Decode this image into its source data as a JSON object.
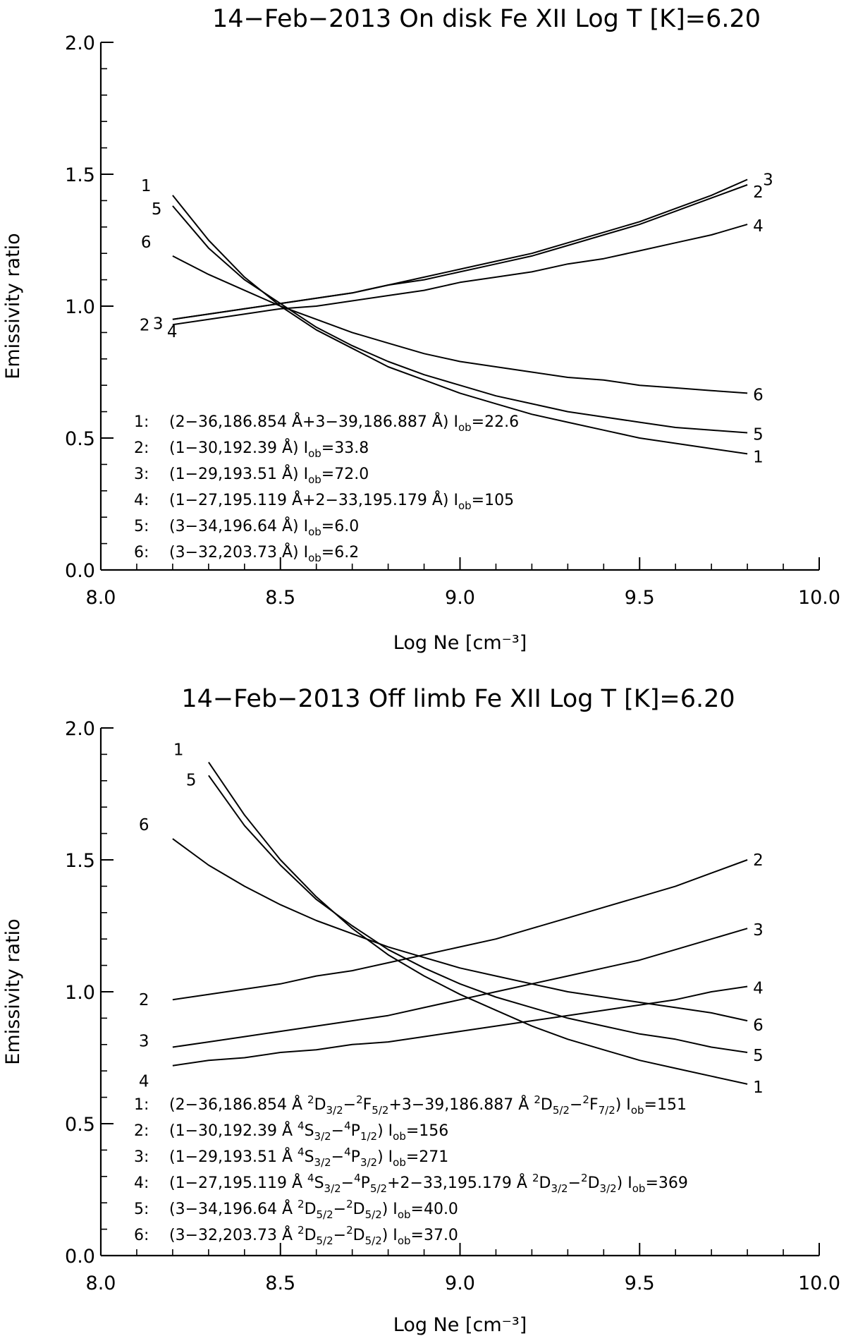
{
  "chart_data": [
    {
      "type": "line",
      "title": "14−Feb−2013 On disk Fe XII  Log T [K]=6.20",
      "xlabel": "Log Ne [cm⁻³]",
      "ylabel": "Emissivity ratio",
      "xlim": [
        8.0,
        10.0
      ],
      "ylim": [
        0.0,
        2.0
      ],
      "x_ticks": [
        "8.0",
        "8.5",
        "9.0",
        "9.5",
        "10.0"
      ],
      "y_ticks": [
        "0.0",
        "0.5",
        "1.0",
        "1.5",
        "2.0"
      ],
      "x": [
        8.2,
        8.3,
        8.4,
        8.5,
        8.6,
        8.7,
        8.8,
        8.9,
        9.0,
        9.1,
        9.2,
        9.3,
        9.4,
        9.5,
        9.6,
        9.7,
        9.8
      ],
      "series": [
        {
          "name": "1",
          "values": [
            1.42,
            1.25,
            1.11,
            1.0,
            0.91,
            0.84,
            0.77,
            0.72,
            0.67,
            0.63,
            0.59,
            0.56,
            0.53,
            0.5,
            0.48,
            0.46,
            0.44
          ]
        },
        {
          "name": "2",
          "values": [
            0.95,
            0.97,
            0.99,
            1.01,
            1.03,
            1.05,
            1.08,
            1.1,
            1.13,
            1.16,
            1.19,
            1.23,
            1.27,
            1.31,
            1.36,
            1.41,
            1.46
          ]
        },
        {
          "name": "3",
          "values": [
            0.95,
            0.97,
            0.99,
            1.01,
            1.03,
            1.05,
            1.08,
            1.11,
            1.14,
            1.17,
            1.2,
            1.24,
            1.28,
            1.32,
            1.37,
            1.42,
            1.48
          ]
        },
        {
          "name": "4",
          "values": [
            0.93,
            0.95,
            0.97,
            0.99,
            1.0,
            1.02,
            1.04,
            1.06,
            1.09,
            1.11,
            1.13,
            1.16,
            1.18,
            1.21,
            1.24,
            1.27,
            1.31
          ]
        },
        {
          "name": "5",
          "values": [
            1.38,
            1.22,
            1.1,
            1.01,
            0.92,
            0.85,
            0.79,
            0.74,
            0.7,
            0.66,
            0.63,
            0.6,
            0.58,
            0.56,
            0.54,
            0.53,
            0.52
          ]
        },
        {
          "name": "6",
          "values": [
            1.19,
            1.12,
            1.06,
            1.0,
            0.95,
            0.9,
            0.86,
            0.82,
            0.79,
            0.77,
            0.75,
            0.73,
            0.72,
            0.7,
            0.69,
            0.68,
            0.67
          ]
        }
      ],
      "curve_labels": {
        "left": [
          {
            "series": "1",
            "text": "1"
          },
          {
            "series": "5",
            "text": "5"
          },
          {
            "series": "6",
            "text": "6"
          },
          {
            "series": "2",
            "text": "2"
          },
          {
            "series": "3",
            "text": "3"
          },
          {
            "series": "4",
            "text": "4"
          }
        ],
        "right": [
          {
            "series": "2",
            "text": "2"
          },
          {
            "series": "3",
            "text": "3"
          },
          {
            "series": "4",
            "text": "4"
          },
          {
            "series": "6",
            "text": "6"
          },
          {
            "series": "5",
            "text": "5"
          },
          {
            "series": "1",
            "text": "1"
          }
        ]
      },
      "legend": [
        {
          "num": "1:",
          "parts": [
            [
              "t",
              "(2−36,186.854 Å+3−39,186.887 Å) I"
            ],
            [
              "sub",
              "ob"
            ],
            [
              "t",
              "=22.6"
            ]
          ]
        },
        {
          "num": "2:",
          "parts": [
            [
              "t",
              "(1−30,192.39 Å) I"
            ],
            [
              "sub",
              "ob"
            ],
            [
              "t",
              "=33.8"
            ]
          ]
        },
        {
          "num": "3:",
          "parts": [
            [
              "t",
              "(1−29,193.51 Å) I"
            ],
            [
              "sub",
              "ob"
            ],
            [
              "t",
              "=72.0"
            ]
          ]
        },
        {
          "num": "4:",
          "parts": [
            [
              "t",
              "(1−27,195.119 Å+2−33,195.179 Å) I"
            ],
            [
              "sub",
              "ob"
            ],
            [
              "t",
              "=105"
            ]
          ]
        },
        {
          "num": "5:",
          "parts": [
            [
              "t",
              "(3−34,196.64 Å) I"
            ],
            [
              "sub",
              "ob"
            ],
            [
              "t",
              "=6.0"
            ]
          ]
        },
        {
          "num": "6:",
          "parts": [
            [
              "t",
              "(3−32,203.73 Å) I"
            ],
            [
              "sub",
              "ob"
            ],
            [
              "t",
              "=6.2"
            ]
          ]
        }
      ]
    },
    {
      "type": "line",
      "title": "14−Feb−2013 Off limb  Fe XII  Log T [K]=6.20",
      "xlabel": "Log Ne [cm⁻³]",
      "ylabel": "Emissivity ratio",
      "xlim": [
        8.0,
        10.0
      ],
      "ylim": [
        0.0,
        2.0
      ],
      "x_ticks": [
        "8.0",
        "8.5",
        "9.0",
        "9.5",
        "10.0"
      ],
      "y_ticks": [
        "0.0",
        "0.5",
        "1.0",
        "1.5",
        "2.0"
      ],
      "x": [
        8.2,
        8.3,
        8.4,
        8.5,
        8.6,
        8.7,
        8.8,
        8.9,
        9.0,
        9.1,
        9.2,
        9.3,
        9.4,
        9.5,
        9.6,
        9.7,
        9.8
      ],
      "series": [
        {
          "name": "1",
          "x": [
            8.3,
            8.4,
            8.5,
            8.6,
            8.7,
            8.8,
            8.9,
            9.0,
            9.1,
            9.2,
            9.3,
            9.4,
            9.5,
            9.6,
            9.7,
            9.8
          ],
          "values": [
            1.87,
            1.67,
            1.5,
            1.36,
            1.24,
            1.14,
            1.06,
            0.99,
            0.93,
            0.87,
            0.82,
            0.78,
            0.74,
            0.71,
            0.68,
            0.65
          ]
        },
        {
          "name": "2",
          "values": [
            0.97,
            0.99,
            1.01,
            1.03,
            1.06,
            1.08,
            1.11,
            1.14,
            1.17,
            1.2,
            1.24,
            1.28,
            1.32,
            1.36,
            1.4,
            1.45,
            1.5
          ]
        },
        {
          "name": "3",
          "values": [
            0.79,
            0.81,
            0.83,
            0.85,
            0.87,
            0.89,
            0.91,
            0.94,
            0.97,
            1.0,
            1.03,
            1.06,
            1.09,
            1.12,
            1.16,
            1.2,
            1.24
          ]
        },
        {
          "name": "4",
          "values": [
            0.72,
            0.74,
            0.75,
            0.77,
            0.78,
            0.8,
            0.81,
            0.83,
            0.85,
            0.87,
            0.89,
            0.91,
            0.93,
            0.95,
            0.97,
            1.0,
            1.02
          ]
        },
        {
          "name": "5",
          "x": [
            8.3,
            8.4,
            8.5,
            8.6,
            8.7,
            8.8,
            8.9,
            9.0,
            9.1,
            9.2,
            9.3,
            9.4,
            9.5,
            9.6,
            9.7,
            9.8
          ],
          "values": [
            1.82,
            1.63,
            1.48,
            1.35,
            1.25,
            1.16,
            1.09,
            1.03,
            0.98,
            0.94,
            0.9,
            0.87,
            0.84,
            0.82,
            0.79,
            0.77
          ]
        },
        {
          "name": "6",
          "values": [
            1.58,
            1.48,
            1.4,
            1.33,
            1.27,
            1.22,
            1.17,
            1.13,
            1.09,
            1.06,
            1.03,
            1.0,
            0.98,
            0.96,
            0.94,
            0.92,
            0.89
          ]
        }
      ],
      "curve_labels": {
        "left": [
          {
            "series": "1",
            "text": "1"
          },
          {
            "series": "5",
            "text": "5"
          },
          {
            "series": "6",
            "text": "6"
          },
          {
            "series": "2",
            "text": "2"
          },
          {
            "series": "3",
            "text": "3"
          },
          {
            "series": "4",
            "text": "4"
          }
        ],
        "right": [
          {
            "series": "2",
            "text": "2"
          },
          {
            "series": "3",
            "text": "3"
          },
          {
            "series": "4",
            "text": "4"
          },
          {
            "series": "6",
            "text": "6"
          },
          {
            "series": "5",
            "text": "5"
          },
          {
            "series": "1",
            "text": "1"
          }
        ]
      },
      "legend": [
        {
          "num": "1:",
          "parts": [
            [
              "t",
              "(2−36,186.854 Å "
            ],
            [
              "sup",
              "2"
            ],
            [
              "t",
              "D"
            ],
            [
              "sub",
              "3/2"
            ],
            [
              "t",
              "−"
            ],
            [
              "sup",
              "2"
            ],
            [
              "t",
              "F"
            ],
            [
              "sub",
              "5/2"
            ],
            [
              "t",
              "+3−39,186.887 Å "
            ],
            [
              "sup",
              "2"
            ],
            [
              "t",
              "D"
            ],
            [
              "sub",
              "5/2"
            ],
            [
              "t",
              "−"
            ],
            [
              "sup",
              "2"
            ],
            [
              "t",
              "F"
            ],
            [
              "sub",
              "7/2"
            ],
            [
              "t",
              ") I"
            ],
            [
              "sub",
              "ob"
            ],
            [
              "t",
              "=151"
            ]
          ]
        },
        {
          "num": "2:",
          "parts": [
            [
              "t",
              "(1−30,192.39 Å "
            ],
            [
              "sup",
              "4"
            ],
            [
              "t",
              "S"
            ],
            [
              "sub",
              "3/2"
            ],
            [
              "t",
              "−"
            ],
            [
              "sup",
              "4"
            ],
            [
              "t",
              "P"
            ],
            [
              "sub",
              "1/2"
            ],
            [
              "t",
              ") I"
            ],
            [
              "sub",
              "ob"
            ],
            [
              "t",
              "=156"
            ]
          ]
        },
        {
          "num": "3:",
          "parts": [
            [
              "t",
              "(1−29,193.51 Å "
            ],
            [
              "sup",
              "4"
            ],
            [
              "t",
              "S"
            ],
            [
              "sub",
              "3/2"
            ],
            [
              "t",
              "−"
            ],
            [
              "sup",
              "4"
            ],
            [
              "t",
              "P"
            ],
            [
              "sub",
              "3/2"
            ],
            [
              "t",
              ") I"
            ],
            [
              "sub",
              "ob"
            ],
            [
              "t",
              "=271"
            ]
          ]
        },
        {
          "num": "4:",
          "parts": [
            [
              "t",
              "(1−27,195.119 Å "
            ],
            [
              "sup",
              "4"
            ],
            [
              "t",
              "S"
            ],
            [
              "sub",
              "3/2"
            ],
            [
              "t",
              "−"
            ],
            [
              "sup",
              "4"
            ],
            [
              "t",
              "P"
            ],
            [
              "sub",
              "5/2"
            ],
            [
              "t",
              "+2−33,195.179 Å "
            ],
            [
              "sup",
              "2"
            ],
            [
              "t",
              "D"
            ],
            [
              "sub",
              "3/2"
            ],
            [
              "t",
              "−"
            ],
            [
              "sup",
              "2"
            ],
            [
              "t",
              "D"
            ],
            [
              "sub",
              "3/2"
            ],
            [
              "t",
              ") I"
            ],
            [
              "sub",
              "ob"
            ],
            [
              "t",
              "=369"
            ]
          ]
        },
        {
          "num": "5:",
          "parts": [
            [
              "t",
              "(3−34,196.64 Å "
            ],
            [
              "sup",
              "2"
            ],
            [
              "t",
              "D"
            ],
            [
              "sub",
              "5/2"
            ],
            [
              "t",
              "−"
            ],
            [
              "sup",
              "2"
            ],
            [
              "t",
              "D"
            ],
            [
              "sub",
              "5/2"
            ],
            [
              "t",
              ") I"
            ],
            [
              "sub",
              "ob"
            ],
            [
              "t",
              "=40.0"
            ]
          ]
        },
        {
          "num": "6:",
          "parts": [
            [
              "t",
              "(3−32,203.73 Å "
            ],
            [
              "sup",
              "2"
            ],
            [
              "t",
              "D"
            ],
            [
              "sub",
              "5/2"
            ],
            [
              "t",
              "−"
            ],
            [
              "sup",
              "2"
            ],
            [
              "t",
              "D"
            ],
            [
              "sub",
              "5/2"
            ],
            [
              "t",
              ") I"
            ],
            [
              "sub",
              "ob"
            ],
            [
              "t",
              "=37.0"
            ]
          ]
        }
      ]
    }
  ]
}
